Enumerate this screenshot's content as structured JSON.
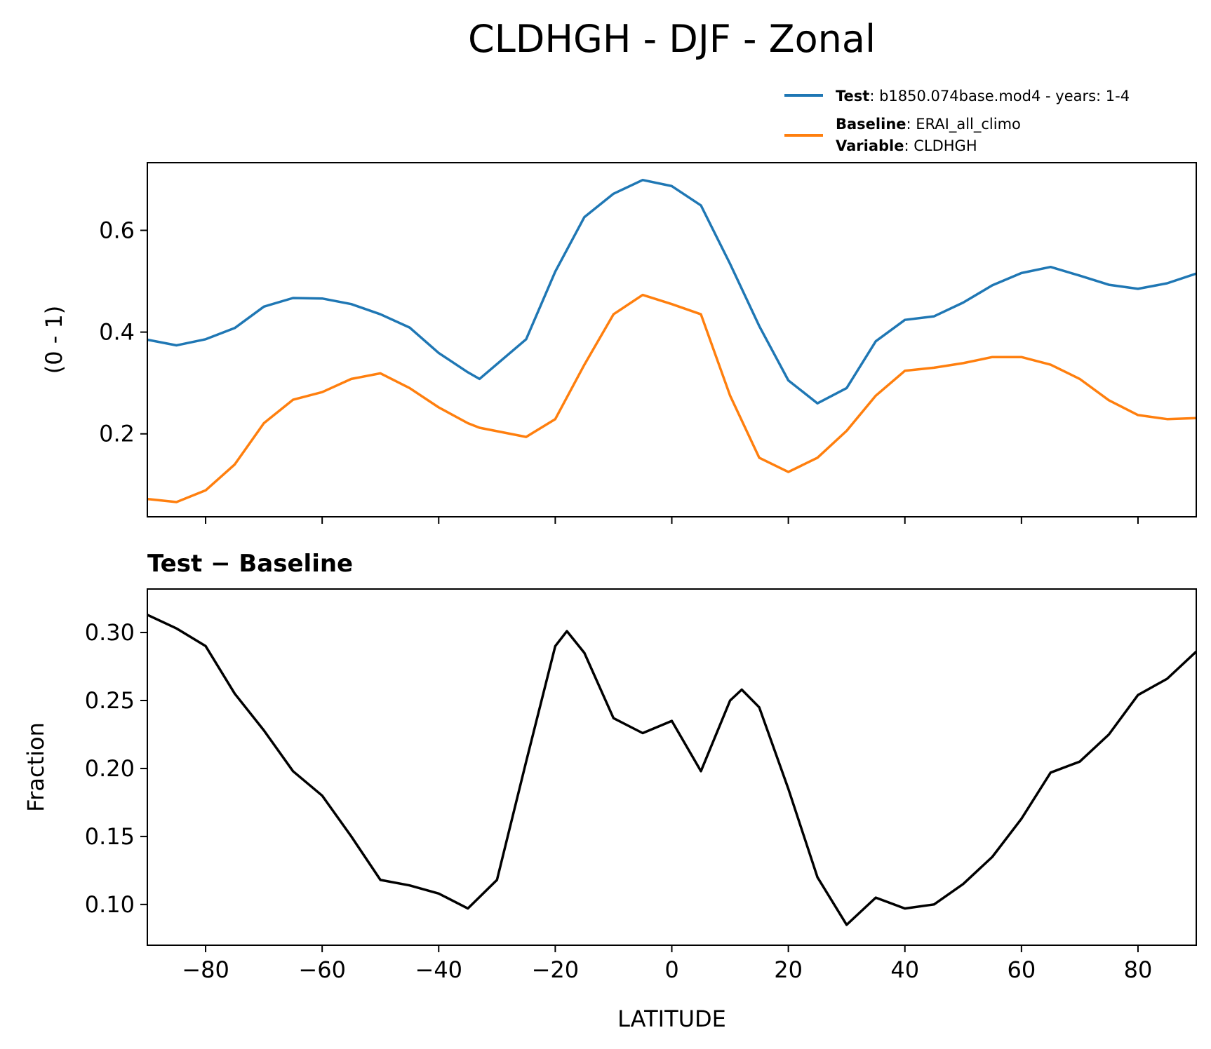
{
  "chart_data": [
    {
      "type": "line",
      "title": "CLDHGH - DJF - Zonal",
      "ylabel": "(0 - 1)",
      "x": [
        -90,
        -85,
        -80,
        -75,
        -70,
        -65,
        -60,
        -55,
        -50,
        -45,
        -40,
        -35,
        -33,
        -25,
        -20,
        -15,
        -10,
        -5,
        0,
        5,
        10,
        15,
        20,
        25,
        30,
        35,
        40,
        45,
        50,
        55,
        60,
        65,
        70,
        75,
        80,
        85,
        90
      ],
      "series": [
        {
          "name": "Test",
          "label": ": b1850.074base.mod4 - years: 1-4",
          "color": "#1f77b4",
          "values": [
            0.385,
            0.374,
            0.386,
            0.408,
            0.45,
            0.467,
            0.466,
            0.455,
            0.435,
            0.409,
            0.359,
            0.321,
            0.308,
            0.386,
            0.519,
            0.626,
            0.672,
            0.699,
            0.687,
            0.649,
            0.534,
            0.412,
            0.305,
            0.26,
            0.29,
            0.382,
            0.424,
            0.431,
            0.458,
            0.492,
            0.516,
            0.528,
            0.511,
            0.493,
            0.485,
            0.496,
            0.515
          ]
        },
        {
          "name": "Baseline",
          "label": ": ERAI_all_climo",
          "color": "#ff7f0e",
          "values": [
            0.072,
            0.066,
            0.089,
            0.14,
            0.221,
            0.267,
            0.282,
            0.308,
            0.319,
            0.29,
            0.252,
            0.221,
            0.212,
            0.194,
            0.229,
            0.336,
            0.435,
            0.473,
            0.455,
            0.435,
            0.275,
            0.153,
            0.125,
            0.153,
            0.206,
            0.275,
            0.324,
            0.33,
            0.339,
            0.351,
            0.351,
            0.336,
            0.308,
            0.266,
            0.237,
            0.229,
            0.231
          ]
        }
      ],
      "legend_note": {
        "name": "Variable",
        "label": ": CLDHGH"
      },
      "xlim": [
        -90,
        90
      ],
      "xticks": [
        -80,
        -60,
        -40,
        -20,
        0,
        20,
        40,
        60,
        80
      ],
      "ylim": [
        0.037,
        0.733
      ],
      "yticks": [
        0.2,
        0.4,
        0.6
      ]
    },
    {
      "type": "line",
      "title": "Test − Baseline",
      "xlabel": "LATITUDE",
      "ylabel": "Fraction",
      "x": [
        -90,
        -85,
        -80,
        -75,
        -70,
        -65,
        -60,
        -55,
        -50,
        -45,
        -40,
        -35,
        -30,
        -25,
        -20,
        -18,
        -15,
        -10,
        -5,
        0,
        5,
        10,
        12,
        15,
        20,
        25,
        30,
        35,
        40,
        45,
        50,
        55,
        60,
        65,
        70,
        75,
        80,
        85,
        90
      ],
      "series": [
        {
          "name": "Test − Baseline",
          "color": "#000000",
          "values": [
            0.313,
            0.303,
            0.29,
            0.255,
            0.228,
            0.198,
            0.18,
            0.15,
            0.118,
            0.114,
            0.108,
            0.097,
            0.118,
            0.205,
            0.29,
            0.301,
            0.285,
            0.237,
            0.226,
            0.235,
            0.198,
            0.25,
            0.258,
            0.245,
            0.185,
            0.12,
            0.085,
            0.105,
            0.097,
            0.1,
            0.115,
            0.135,
            0.163,
            0.197,
            0.205,
            0.225,
            0.254,
            0.266,
            0.286
          ]
        }
      ],
      "xlim": [
        -90,
        90
      ],
      "xticks": [
        {
          "value": -80,
          "label": "−80"
        },
        {
          "value": -60,
          "label": "−60"
        },
        {
          "value": -40,
          "label": "−40"
        },
        {
          "value": -20,
          "label": "−20"
        },
        0,
        20,
        40,
        60,
        80
      ],
      "ylim": [
        0.07,
        0.332
      ],
      "yticks": [
        {
          "value": 0.1,
          "label": "0.10"
        },
        0.15,
        {
          "value": 0.2,
          "label": "0.20"
        },
        0.25,
        {
          "value": 0.3,
          "label": "0.30"
        }
      ]
    }
  ]
}
